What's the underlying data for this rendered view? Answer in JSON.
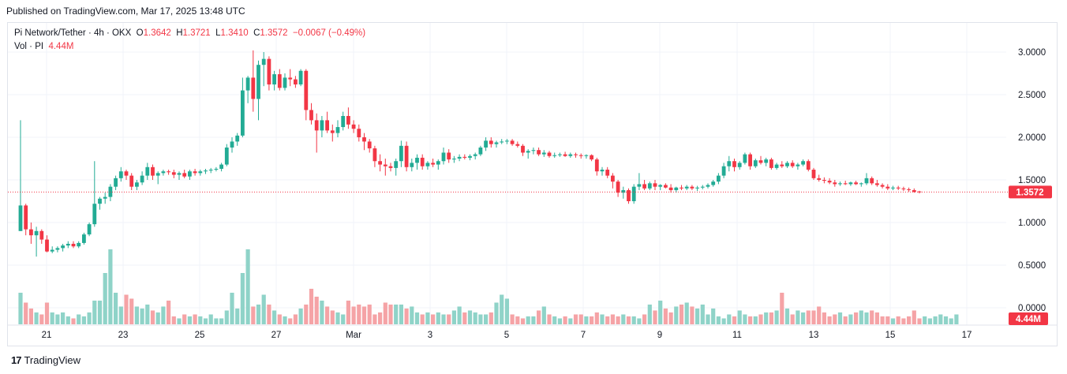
{
  "header": {
    "published": "Published on TradingView.com, Mar 17, 2025 13:48 UTC"
  },
  "legend": {
    "symbol": "Pi Network/Tether · 4h · OKX",
    "o_label": "O",
    "o_value": "1.3642",
    "h_label": "H",
    "h_value": "1.3721",
    "l_label": "L",
    "l_value": "1.3410",
    "c_label": "C",
    "c_value": "1.3572",
    "change": "−0.0067 (−0.49%)",
    "vol_label": "Vol · PI",
    "vol_value": "4.44M"
  },
  "footer": {
    "brand": "TradingView",
    "logo": "17"
  },
  "colors": {
    "up": "#22ab94",
    "down": "#f23645",
    "up_vol": "#8fd3c8",
    "down_vol": "#f5a3a6",
    "grid": "#f0f3fa",
    "axis_text": "#131722"
  },
  "chart_data": {
    "type": "candlestick",
    "y_ticks": [
      "3.0000",
      "2.5000",
      "2.0000",
      "1.5000",
      "1.0000",
      "0.5000",
      "0.0000"
    ],
    "y_tick_values": [
      3.0,
      2.5,
      2.0,
      1.5,
      1.0,
      0.5,
      0.0
    ],
    "x_ticks": [
      "21",
      "23",
      "25",
      "27",
      "Mar",
      "3",
      "5",
      "7",
      "9",
      "11",
      "13",
      "15",
      "17"
    ],
    "price_range": [
      0.0,
      3.0
    ],
    "last_price": 1.3572,
    "last_price_label": "1.3572",
    "last_volume_label": "4.44M",
    "candles_ohlc": [
      [
        0.9,
        2.2,
        0.9,
        1.2
      ],
      [
        1.2,
        1.22,
        0.85,
        0.92
      ],
      [
        0.92,
        1.0,
        0.75,
        0.85
      ],
      [
        0.85,
        0.95,
        0.6,
        0.9
      ],
      [
        0.9,
        0.92,
        0.75,
        0.8
      ],
      [
        0.8,
        0.85,
        0.65,
        0.66
      ],
      [
        0.66,
        0.72,
        0.64,
        0.68
      ],
      [
        0.68,
        0.72,
        0.65,
        0.7
      ],
      [
        0.7,
        0.75,
        0.66,
        0.73
      ],
      [
        0.73,
        0.78,
        0.7,
        0.75
      ],
      [
        0.75,
        0.78,
        0.7,
        0.72
      ],
      [
        0.72,
        0.78,
        0.7,
        0.76
      ],
      [
        0.76,
        0.88,
        0.74,
        0.86
      ],
      [
        0.86,
        1.0,
        0.84,
        0.98
      ],
      [
        0.98,
        1.72,
        0.95,
        1.22
      ],
      [
        1.22,
        1.3,
        1.15,
        1.28
      ],
      [
        1.28,
        1.35,
        1.22,
        1.3
      ],
      [
        1.3,
        1.45,
        1.25,
        1.42
      ],
      [
        1.42,
        1.55,
        1.38,
        1.52
      ],
      [
        1.52,
        1.65,
        1.48,
        1.6
      ],
      [
        1.6,
        1.62,
        1.5,
        1.55
      ],
      [
        1.55,
        1.58,
        1.38,
        1.42
      ],
      [
        1.42,
        1.5,
        1.38,
        1.47
      ],
      [
        1.47,
        1.6,
        1.44,
        1.55
      ],
      [
        1.55,
        1.7,
        1.5,
        1.65
      ],
      [
        1.65,
        1.68,
        1.5,
        1.55
      ],
      [
        1.55,
        1.6,
        1.45,
        1.58
      ],
      [
        1.58,
        1.62,
        1.55,
        1.6
      ],
      [
        1.6,
        1.62,
        1.56,
        1.59
      ],
      [
        1.59,
        1.62,
        1.52,
        1.56
      ],
      [
        1.56,
        1.6,
        1.5,
        1.58
      ],
      [
        1.58,
        1.62,
        1.52,
        1.54
      ],
      [
        1.54,
        1.62,
        1.5,
        1.6
      ],
      [
        1.6,
        1.63,
        1.55,
        1.58
      ],
      [
        1.58,
        1.62,
        1.55,
        1.6
      ],
      [
        1.6,
        1.63,
        1.57,
        1.61
      ],
      [
        1.61,
        1.64,
        1.58,
        1.62
      ],
      [
        1.62,
        1.65,
        1.6,
        1.63
      ],
      [
        1.63,
        1.7,
        1.6,
        1.68
      ],
      [
        1.68,
        1.92,
        1.66,
        1.88
      ],
      [
        1.88,
        2.0,
        1.82,
        1.95
      ],
      [
        1.95,
        2.05,
        1.9,
        2.02
      ],
      [
        2.02,
        2.7,
        2.0,
        2.55
      ],
      [
        2.55,
        2.72,
        2.4,
        2.7
      ],
      [
        2.7,
        3.02,
        2.3,
        2.45
      ],
      [
        2.45,
        2.9,
        2.2,
        2.85
      ],
      [
        2.85,
        3.0,
        2.6,
        2.92
      ],
      [
        2.92,
        2.95,
        2.55,
        2.62
      ],
      [
        2.62,
        2.78,
        2.55,
        2.74
      ],
      [
        2.74,
        2.8,
        2.55,
        2.58
      ],
      [
        2.58,
        2.75,
        2.55,
        2.7
      ],
      [
        2.7,
        2.8,
        2.6,
        2.68
      ],
      [
        2.68,
        2.72,
        2.58,
        2.62
      ],
      [
        2.62,
        2.8,
        2.6,
        2.78
      ],
      [
        2.78,
        2.8,
        2.2,
        2.32
      ],
      [
        2.32,
        2.4,
        2.15,
        2.2
      ],
      [
        2.2,
        2.28,
        1.82,
        2.08
      ],
      [
        2.08,
        2.25,
        2.0,
        2.2
      ],
      [
        2.2,
        2.3,
        2.05,
        2.08
      ],
      [
        2.08,
        2.15,
        1.95,
        2.05
      ],
      [
        2.05,
        2.2,
        2.0,
        2.12
      ],
      [
        2.12,
        2.3,
        2.08,
        2.25
      ],
      [
        2.25,
        2.35,
        2.1,
        2.15
      ],
      [
        2.15,
        2.2,
        2.05,
        2.1
      ],
      [
        2.1,
        2.15,
        1.95,
        2.0
      ],
      [
        2.0,
        2.05,
        1.85,
        1.95
      ],
      [
        1.95,
        1.98,
        1.82,
        1.87
      ],
      [
        1.87,
        1.9,
        1.65,
        1.72
      ],
      [
        1.72,
        1.8,
        1.6,
        1.68
      ],
      [
        1.68,
        1.75,
        1.55,
        1.66
      ],
      [
        1.66,
        1.7,
        1.6,
        1.64
      ],
      [
        1.64,
        1.75,
        1.55,
        1.72
      ],
      [
        1.72,
        1.96,
        1.65,
        1.9
      ],
      [
        1.9,
        1.95,
        1.6,
        1.65
      ],
      [
        1.65,
        1.75,
        1.6,
        1.7
      ],
      [
        1.7,
        1.8,
        1.62,
        1.76
      ],
      [
        1.76,
        1.8,
        1.62,
        1.66
      ],
      [
        1.66,
        1.72,
        1.62,
        1.7
      ],
      [
        1.7,
        1.75,
        1.65,
        1.68
      ],
      [
        1.68,
        1.74,
        1.62,
        1.72
      ],
      [
        1.72,
        1.88,
        1.68,
        1.82
      ],
      [
        1.82,
        1.86,
        1.7,
        1.74
      ],
      [
        1.74,
        1.78,
        1.7,
        1.75
      ],
      [
        1.75,
        1.8,
        1.72,
        1.77
      ],
      [
        1.77,
        1.8,
        1.74,
        1.76
      ],
      [
        1.76,
        1.8,
        1.73,
        1.78
      ],
      [
        1.78,
        1.82,
        1.74,
        1.8
      ],
      [
        1.8,
        1.9,
        1.78,
        1.88
      ],
      [
        1.88,
        2.0,
        1.84,
        1.96
      ],
      [
        1.96,
        2.0,
        1.88,
        1.92
      ],
      [
        1.92,
        1.96,
        1.88,
        1.94
      ],
      [
        1.94,
        1.98,
        1.92,
        1.95
      ],
      [
        1.95,
        1.98,
        1.92,
        1.96
      ],
      [
        1.96,
        1.98,
        1.9,
        1.92
      ],
      [
        1.92,
        1.95,
        1.88,
        1.9
      ],
      [
        1.9,
        1.92,
        1.78,
        1.82
      ],
      [
        1.82,
        1.86,
        1.75,
        1.84
      ],
      [
        1.84,
        1.88,
        1.8,
        1.85
      ],
      [
        1.85,
        1.88,
        1.78,
        1.8
      ],
      [
        1.8,
        1.85,
        1.77,
        1.82
      ],
      [
        1.82,
        1.84,
        1.76,
        1.78
      ],
      [
        1.78,
        1.82,
        1.76,
        1.79
      ],
      [
        1.79,
        1.82,
        1.77,
        1.8
      ],
      [
        1.8,
        1.83,
        1.77,
        1.78
      ],
      [
        1.78,
        1.82,
        1.76,
        1.8
      ],
      [
        1.8,
        1.82,
        1.76,
        1.79
      ],
      [
        1.79,
        1.81,
        1.75,
        1.78
      ],
      [
        1.78,
        1.8,
        1.75,
        1.79
      ],
      [
        1.79,
        1.8,
        1.72,
        1.74
      ],
      [
        1.74,
        1.76,
        1.55,
        1.6
      ],
      [
        1.6,
        1.65,
        1.55,
        1.62
      ],
      [
        1.62,
        1.65,
        1.52,
        1.55
      ],
      [
        1.55,
        1.58,
        1.4,
        1.48
      ],
      [
        1.48,
        1.5,
        1.3,
        1.35
      ],
      [
        1.35,
        1.42,
        1.28,
        1.38
      ],
      [
        1.38,
        1.4,
        1.22,
        1.25
      ],
      [
        1.25,
        1.45,
        1.22,
        1.42
      ],
      [
        1.42,
        1.58,
        1.38,
        1.45
      ],
      [
        1.45,
        1.5,
        1.38,
        1.4
      ],
      [
        1.4,
        1.48,
        1.38,
        1.46
      ],
      [
        1.46,
        1.5,
        1.38,
        1.42
      ],
      [
        1.42,
        1.45,
        1.38,
        1.44
      ],
      [
        1.44,
        1.46,
        1.4,
        1.41
      ],
      [
        1.41,
        1.45,
        1.35,
        1.38
      ],
      [
        1.38,
        1.42,
        1.35,
        1.41
      ],
      [
        1.41,
        1.44,
        1.38,
        1.4
      ],
      [
        1.4,
        1.44,
        1.38,
        1.42
      ],
      [
        1.42,
        1.44,
        1.38,
        1.4
      ],
      [
        1.4,
        1.43,
        1.37,
        1.41
      ],
      [
        1.41,
        1.44,
        1.39,
        1.42
      ],
      [
        1.42,
        1.46,
        1.4,
        1.44
      ],
      [
        1.44,
        1.5,
        1.42,
        1.48
      ],
      [
        1.48,
        1.58,
        1.45,
        1.55
      ],
      [
        1.55,
        1.7,
        1.52,
        1.66
      ],
      [
        1.66,
        1.78,
        1.6,
        1.72
      ],
      [
        1.72,
        1.75,
        1.6,
        1.65
      ],
      [
        1.65,
        1.72,
        1.62,
        1.7
      ],
      [
        1.7,
        1.82,
        1.68,
        1.8
      ],
      [
        1.8,
        1.82,
        1.62,
        1.66
      ],
      [
        1.66,
        1.75,
        1.64,
        1.73
      ],
      [
        1.73,
        1.78,
        1.68,
        1.7
      ],
      [
        1.7,
        1.76,
        1.66,
        1.74
      ],
      [
        1.74,
        1.76,
        1.62,
        1.64
      ],
      [
        1.64,
        1.7,
        1.62,
        1.68
      ],
      [
        1.68,
        1.72,
        1.64,
        1.66
      ],
      [
        1.66,
        1.72,
        1.64,
        1.7
      ],
      [
        1.7,
        1.73,
        1.64,
        1.66
      ],
      [
        1.66,
        1.7,
        1.62,
        1.68
      ],
      [
        1.68,
        1.74,
        1.66,
        1.72
      ],
      [
        1.72,
        1.74,
        1.6,
        1.62
      ],
      [
        1.62,
        1.64,
        1.5,
        1.52
      ],
      [
        1.52,
        1.56,
        1.48,
        1.5
      ],
      [
        1.5,
        1.53,
        1.46,
        1.49
      ],
      [
        1.49,
        1.52,
        1.45,
        1.47
      ],
      [
        1.47,
        1.5,
        1.42,
        1.45
      ],
      [
        1.45,
        1.48,
        1.43,
        1.46
      ],
      [
        1.46,
        1.49,
        1.44,
        1.45
      ],
      [
        1.45,
        1.48,
        1.43,
        1.47
      ],
      [
        1.47,
        1.49,
        1.44,
        1.45
      ],
      [
        1.45,
        1.47,
        1.42,
        1.46
      ],
      [
        1.46,
        1.58,
        1.44,
        1.52
      ],
      [
        1.52,
        1.54,
        1.44,
        1.46
      ],
      [
        1.46,
        1.5,
        1.42,
        1.44
      ],
      [
        1.44,
        1.46,
        1.4,
        1.42
      ],
      [
        1.42,
        1.45,
        1.38,
        1.4
      ],
      [
        1.4,
        1.43,
        1.38,
        1.41
      ],
      [
        1.41,
        1.43,
        1.38,
        1.4
      ],
      [
        1.4,
        1.42,
        1.37,
        1.39
      ],
      [
        1.39,
        1.41,
        1.36,
        1.38
      ],
      [
        1.38,
        1.4,
        1.35,
        1.36
      ],
      [
        1.3642,
        1.3721,
        1.341,
        1.3572
      ]
    ],
    "volumes": [
      0.16,
      0.11,
      0.08,
      0.06,
      0.05,
      0.11,
      0.06,
      0.05,
      0.06,
      0.04,
      0.03,
      0.05,
      0.04,
      0.06,
      0.12,
      0.12,
      0.26,
      0.38,
      0.16,
      0.09,
      0.15,
      0.13,
      0.09,
      0.08,
      0.1,
      0.07,
      0.06,
      0.09,
      0.12,
      0.04,
      0.03,
      0.05,
      0.04,
      0.05,
      0.04,
      0.03,
      0.05,
      0.03,
      0.03,
      0.07,
      0.16,
      0.08,
      0.26,
      0.38,
      0.09,
      0.1,
      0.15,
      0.1,
      0.07,
      0.05,
      0.04,
      0.03,
      0.05,
      0.08,
      0.1,
      0.18,
      0.14,
      0.12,
      0.09,
      0.07,
      0.06,
      0.05,
      0.12,
      0.09,
      0.1,
      0.09,
      0.1,
      0.05,
      0.06,
      0.11,
      0.1,
      0.1,
      0.1,
      0.08,
      0.09,
      0.06,
      0.05,
      0.06,
      0.05,
      0.06,
      0.05,
      0.05,
      0.07,
      0.09,
      0.06,
      0.07,
      0.06,
      0.05,
      0.05,
      0.06,
      0.11,
      0.15,
      0.13,
      0.05,
      0.04,
      0.03,
      0.04,
      0.04,
      0.07,
      0.09,
      0.05,
      0.04,
      0.03,
      0.04,
      0.03,
      0.05,
      0.05,
      0.04,
      0.04,
      0.06,
      0.05,
      0.04,
      0.05,
      0.04,
      0.05,
      0.04,
      0.04,
      0.03,
      0.05,
      0.1,
      0.07,
      0.12,
      0.08,
      0.06,
      0.09,
      0.1,
      0.11,
      0.09,
      0.08,
      0.1,
      0.05,
      0.08,
      0.04,
      0.03,
      0.05,
      0.04,
      0.07,
      0.05,
      0.04,
      0.04,
      0.05,
      0.06,
      0.06,
      0.07,
      0.16,
      0.08,
      0.05,
      0.07,
      0.06,
      0.07,
      0.07,
      0.09,
      0.06,
      0.04,
      0.05,
      0.06,
      0.04,
      0.05,
      0.06,
      0.07,
      0.06,
      0.07,
      0.06,
      0.04,
      0.04,
      0.03,
      0.04,
      0.03,
      0.04,
      0.07,
      0.03,
      0.04,
      0.03,
      0.04,
      0.05,
      0.04,
      0.03,
      0.05
    ]
  }
}
